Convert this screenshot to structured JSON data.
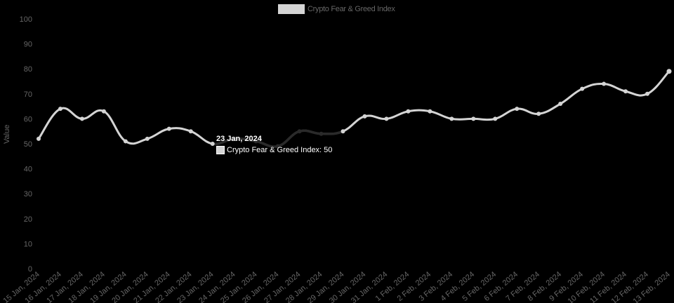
{
  "legend": {
    "label": "Crypto Fear & Greed Index",
    "color": "#d4d4d4"
  },
  "y_axis": {
    "title": "Value",
    "ticks": [
      "100",
      "90",
      "80",
      "70",
      "60",
      "50",
      "40",
      "30",
      "20",
      "10",
      "0"
    ]
  },
  "tooltip": {
    "title": "23 Jan, 2024",
    "label": "Crypto Fear & Greed Index: 50"
  },
  "chart_data": {
    "type": "line",
    "title": "",
    "legend": [
      "Crypto Fear & Greed Index"
    ],
    "xlabel": "",
    "ylabel": "Value",
    "ylim": [
      0,
      100
    ],
    "grid": false,
    "legend_position": "top",
    "categories": [
      "15 Jan, 2024",
      "16 Jan, 2024",
      "17 Jan, 2024",
      "18 Jan, 2024",
      "19 Jan, 2024",
      "20 Jan, 2024",
      "21 Jan, 2024",
      "22 Jan, 2024",
      "23 Jan, 2024",
      "24 Jan, 2024",
      "25 Jan, 2024",
      "26 Jan, 2024",
      "27 Jan, 2024",
      "28 Jan, 2024",
      "29 Jan, 2024",
      "30 Jan, 2024",
      "31 Jan, 2024",
      "1 Feb, 2024",
      "2 Feb, 2024",
      "3 Feb, 2024",
      "4 Feb, 2024",
      "5 Feb, 2024",
      "6 Feb, 2024",
      "7 Feb, 2024",
      "8 Feb, 2024",
      "9 Feb, 2024",
      "10 Feb, 2024",
      "11 Feb, 2024",
      "12 Feb, 2024",
      "13 Feb, 2024"
    ],
    "series": [
      {
        "name": "Crypto Fear & Greed Index",
        "color": "#d4d4d4",
        "values": [
          52,
          64,
          60,
          63,
          51,
          52,
          56,
          55,
          50,
          52,
          51,
          49,
          55,
          54,
          55,
          61,
          60,
          63,
          63,
          60,
          60,
          60,
          64,
          62,
          66,
          72,
          74,
          71,
          70,
          79
        ]
      }
    ],
    "annotations": [
      {
        "type": "tooltip",
        "index": 8,
        "text": "23 Jan, 2024 — Crypto Fear & Greed Index: 50"
      }
    ]
  }
}
